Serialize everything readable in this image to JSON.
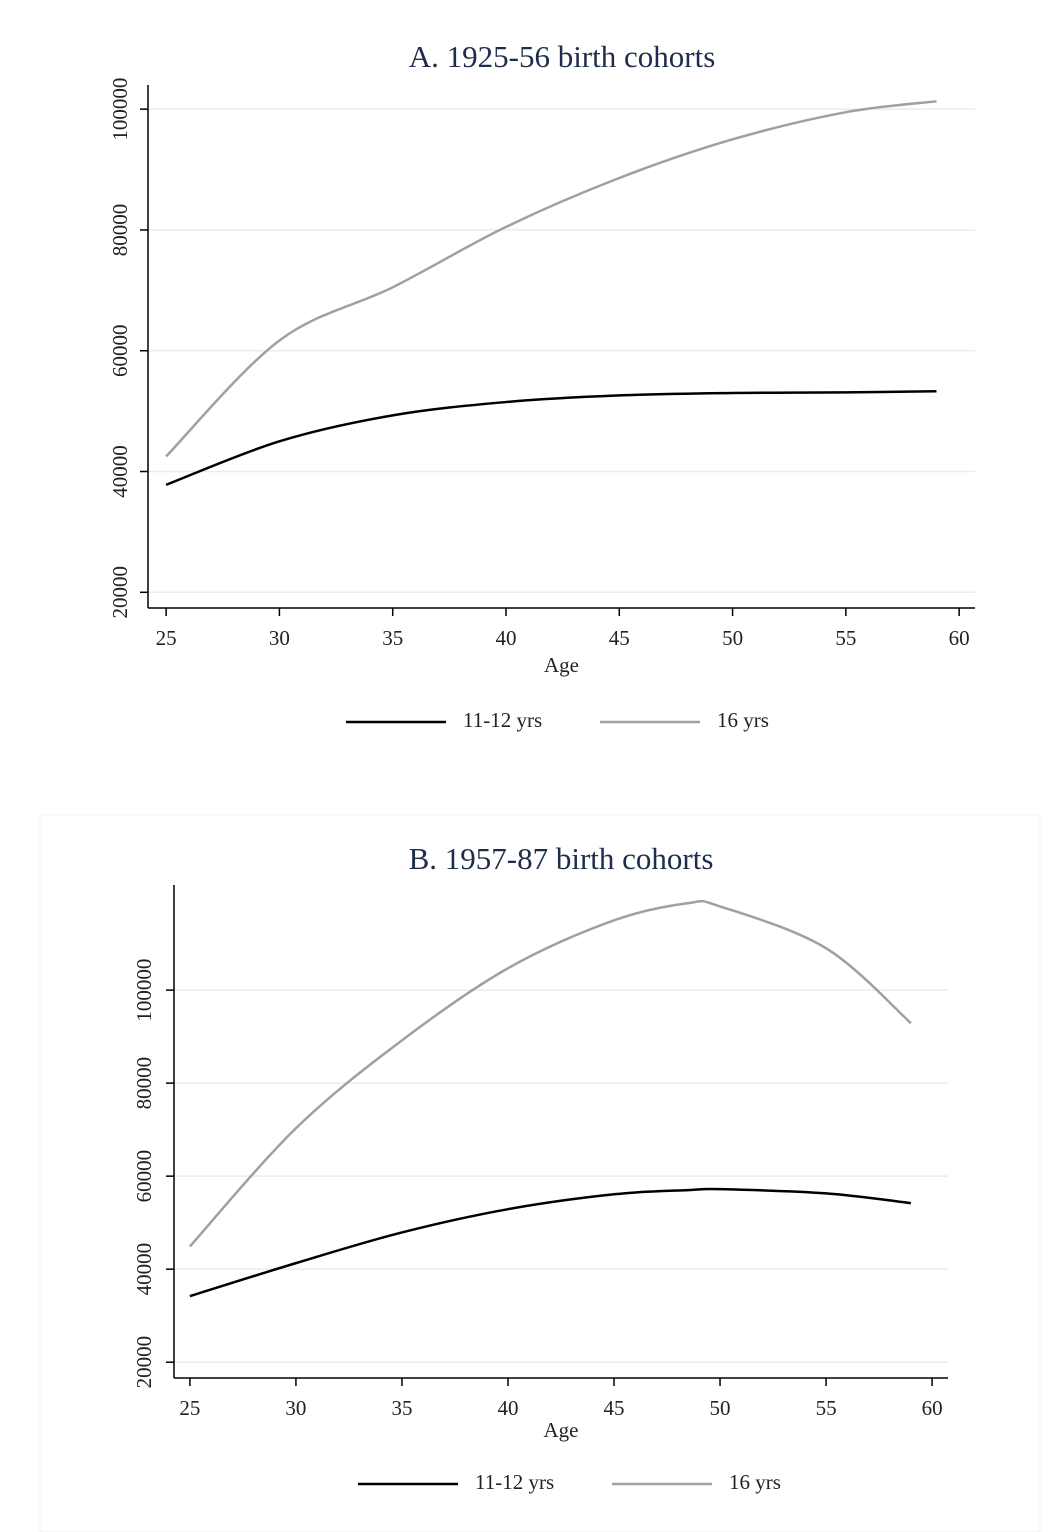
{
  "chart_data": [
    {
      "type": "line",
      "title": "A. 1925-56 birth cohorts",
      "xlabel": "Age",
      "x": [
        25,
        30,
        35,
        40,
        45,
        50,
        55,
        59
      ],
      "series": [
        {
          "name": "11-12 yrs",
          "color": "#000000",
          "values": [
            37800,
            45000,
            49300,
            51500,
            52600,
            53000,
            53100,
            53300
          ]
        },
        {
          "name": "16 yrs",
          "color": "#a0a0a0",
          "values": [
            42500,
            61700,
            70500,
            80500,
            88600,
            95000,
            99500,
            101300
          ]
        }
      ],
      "xlim": [
        24.2,
        60.7
      ],
      "xticks": [
        25,
        30,
        35,
        40,
        45,
        50,
        55,
        60
      ],
      "ylim": [
        17400,
        104000
      ],
      "yticks": [
        20000,
        40000,
        60000,
        80000,
        100000
      ],
      "grid": true,
      "legend": "bottom"
    },
    {
      "type": "line",
      "title": "B. 1957-87 birth cohorts",
      "xlabel": "Age",
      "x": [
        25,
        30,
        35,
        40,
        45,
        48.5,
        50,
        55,
        59
      ],
      "series": [
        {
          "name": "11-12 yrs",
          "color": "#000000",
          "values": [
            34200,
            41300,
            47900,
            52900,
            56100,
            57000,
            57200,
            56300,
            54200
          ]
        },
        {
          "name": "16 yrs",
          "color": "#a0a0a0",
          "values": [
            44900,
            70300,
            89200,
            104700,
            115000,
            118700,
            118000,
            109000,
            92900
          ]
        }
      ],
      "xlim": [
        24.25,
        60.75
      ],
      "xticks": [
        25,
        30,
        35,
        40,
        45,
        50,
        55,
        60
      ],
      "ylim": [
        16600,
        122600
      ],
      "yticks": [
        20000,
        40000,
        60000,
        80000,
        100000
      ],
      "grid": true,
      "legend": "bottom"
    }
  ]
}
